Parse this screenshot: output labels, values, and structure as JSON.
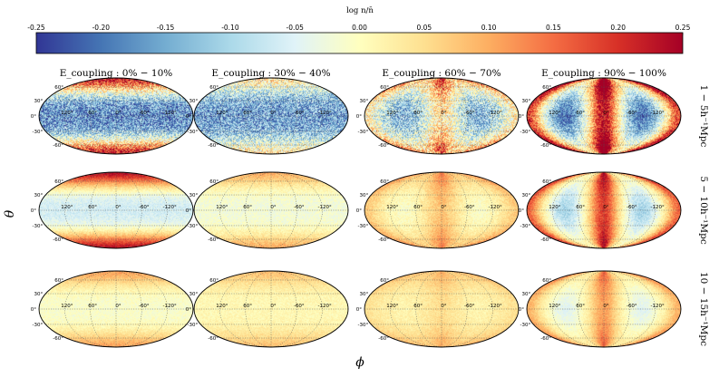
{
  "chart_data": {
    "type": "heatmap",
    "projection": "mollweide",
    "colorbar": {
      "label": "log n/n̄",
      "min": -0.25,
      "max": 0.25,
      "ticks": [
        "-0.25",
        "-0.20",
        "-0.15",
        "-0.10",
        "-0.05",
        "0.00",
        "0.05",
        "0.10",
        "0.15",
        "0.20",
        "0.25"
      ],
      "colormap": [
        "#313695",
        "#4575b4",
        "#74add1",
        "#abd9e9",
        "#e0f3f8",
        "#ffffbf",
        "#fee090",
        "#fdae61",
        "#f46d43",
        "#d73027",
        "#a50026"
      ]
    },
    "column_titles": [
      "E_coupling : 0% − 10%",
      "E_coupling : 30% − 40%",
      "E_coupling : 60% − 70%",
      "E_coupling : 90% − 100%"
    ],
    "row_labels": [
      "1 − 5h⁻¹Mpc",
      "5 − 10h⁻¹Mpc",
      "10 − 15h⁻¹Mpc"
    ],
    "xlabel": "ϕ",
    "ylabel": "θ",
    "lon_ticks": [
      "120°",
      "60°",
      "0°",
      "-60°",
      "-120°"
    ],
    "lat_ticks": [
      "60°",
      "30°",
      "0°",
      "-30°",
      "-60°"
    ],
    "panels": [
      {
        "row": 0,
        "col": 0,
        "base": -0.17,
        "polar": 0.4,
        "dipole": 0.0,
        "noise": 0.1
      },
      {
        "row": 0,
        "col": 1,
        "base": -0.15,
        "polar": 0.19,
        "dipole": 0.0,
        "noise": 0.1
      },
      {
        "row": 0,
        "col": 2,
        "base": -0.06,
        "polar": 0.16,
        "dipole": 0.1,
        "noise": 0.1
      },
      {
        "row": 0,
        "col": 3,
        "base": -0.02,
        "polar": 0.16,
        "dipole": 0.25,
        "noise": 0.07
      },
      {
        "row": 1,
        "col": 0,
        "base": -0.06,
        "polar": 0.3,
        "dipole": 0.0,
        "noise": 0.025
      },
      {
        "row": 1,
        "col": 1,
        "base": -0.02,
        "polar": 0.12,
        "dipole": 0.0,
        "noise": 0.025
      },
      {
        "row": 1,
        "col": 2,
        "base": 0.03,
        "polar": 0.06,
        "dipole": 0.05,
        "noise": 0.025
      },
      {
        "row": 1,
        "col": 3,
        "base": 0.02,
        "polar": 0.06,
        "dipole": 0.17,
        "noise": 0.03
      },
      {
        "row": 2,
        "col": 0,
        "base": -0.01,
        "polar": 0.12,
        "dipole": 0.0,
        "noise": 0.02
      },
      {
        "row": 2,
        "col": 1,
        "base": 0.01,
        "polar": 0.07,
        "dipole": 0.0,
        "noise": 0.02
      },
      {
        "row": 2,
        "col": 2,
        "base": 0.03,
        "polar": 0.05,
        "dipole": 0.02,
        "noise": 0.02
      },
      {
        "row": 2,
        "col": 3,
        "base": 0.02,
        "polar": 0.05,
        "dipole": 0.09,
        "noise": 0.02
      }
    ]
  }
}
